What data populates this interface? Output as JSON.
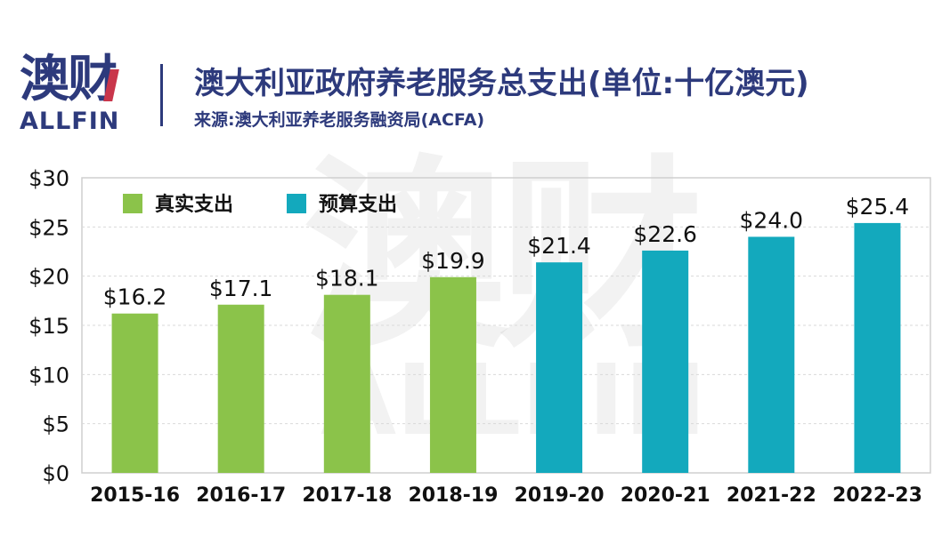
{
  "brand": {
    "logo_cn": "澳财",
    "logo_en": "ALLFIN",
    "primary_color": "#2d3a7c",
    "accent_color": "#c9364b"
  },
  "header": {
    "title": "澳大利亚政府养老服务总支出(单位:十亿澳元)",
    "source": "来源:澳大利亚养老服务融资局(ACFA)"
  },
  "watermark": {
    "cn": "澳财",
    "en": "ALLFIN"
  },
  "chart_data": {
    "type": "bar",
    "categories": [
      "2015-16",
      "2016-17",
      "2017-18",
      "2018-19",
      "2019-20",
      "2020-21",
      "2021-22",
      "2022-23"
    ],
    "values": [
      16.2,
      17.1,
      18.1,
      19.9,
      21.4,
      22.6,
      24.0,
      25.4
    ],
    "value_labels": [
      "$16.2",
      "$17.1",
      "$18.1",
      "$19.9",
      "$21.4",
      "$22.6",
      "$24.0",
      "$25.4"
    ],
    "series_kind": [
      "actual",
      "actual",
      "actual",
      "actual",
      "budget",
      "budget",
      "budget",
      "budget"
    ],
    "legend": [
      {
        "key": "actual",
        "label": "真实支出",
        "color": "#8bc34a"
      },
      {
        "key": "budget",
        "label": "预算支出",
        "color": "#13a9bd"
      }
    ],
    "legend_position": "top-left",
    "ylim": [
      0,
      30
    ],
    "yticks": [
      0,
      5,
      10,
      15,
      20,
      25,
      30
    ],
    "ytick_labels": [
      "$0",
      "$5",
      "$10",
      "$15",
      "$20",
      "$25",
      "$30"
    ],
    "grid": true,
    "xlabel": "",
    "ylabel": ""
  }
}
